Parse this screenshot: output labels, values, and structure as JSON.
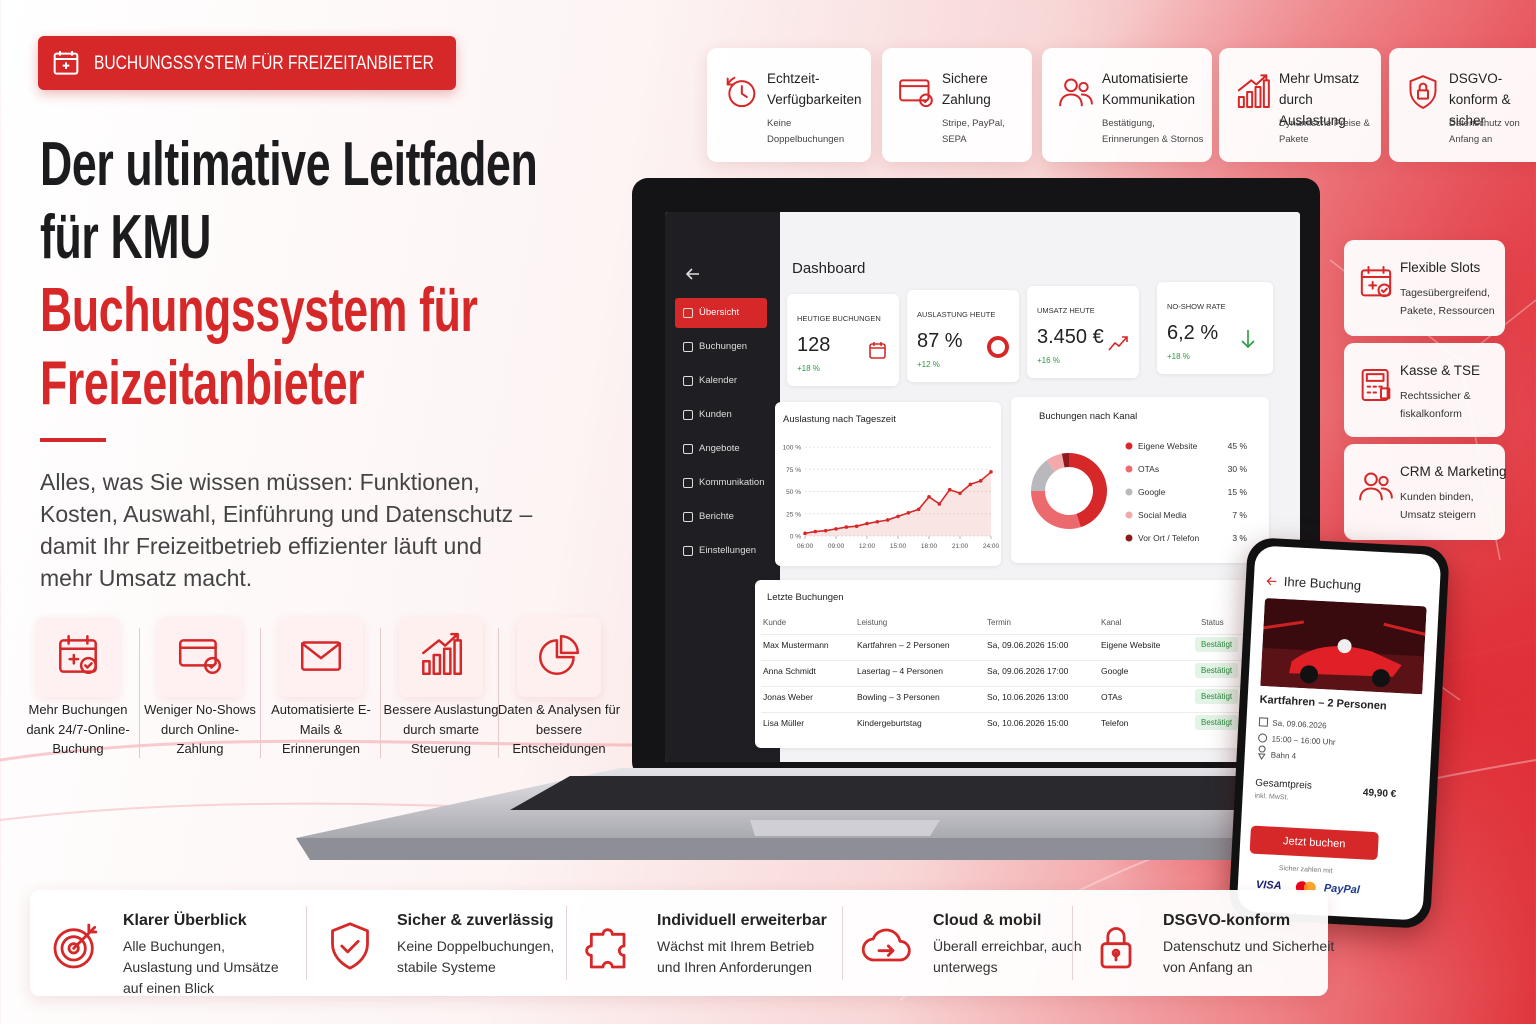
{
  "badge": "BUCHUNGSSYSTEM FÜR FREIZEITANBIETER",
  "headline": {
    "line1": "Der ultimative Leitfaden",
    "line2": "für KMU",
    "accent1": "Buchungssystem für",
    "accent2": "Freizeitanbieter"
  },
  "intro": "Alles, was Sie wissen müssen: Funktionen, Kosten, Auswahl, Einführung und Datenschutz – damit Ihr Freizeitbetrieb effizienter läuft und mehr Umsatz macht.",
  "benefits": [
    {
      "label": "Mehr Buchungen dank 24/7-Online-Buchung"
    },
    {
      "label": "Weniger No-Shows durch Online-Zahlung"
    },
    {
      "label": "Automatisierte E-Mails & Erinnerungen"
    },
    {
      "label": "Bessere Auslastung durch smarte Steuerung"
    },
    {
      "label": "Daten & Analysen für bessere Entscheidungen"
    }
  ],
  "top_features": [
    {
      "title": "Echtzeit-Verfügbarkeiten",
      "text": "Keine Doppelbuchungen"
    },
    {
      "title": "Sichere Zahlung",
      "text": "Stripe, PayPal, SEPA"
    },
    {
      "title": "Automatisierte Kommunikation",
      "text": "Bestätigung, Erinnerungen & Stornos"
    },
    {
      "title": "Mehr Umsatz durch Auslastung",
      "text": "Dynamische Preise & Pakete"
    },
    {
      "title": "DSGVO-konform & sicher",
      "text": "Datenschutz von Anfang an"
    }
  ],
  "side_features": [
    {
      "title": "Flexible Slots",
      "text": "Tagesübergreifend, Pakete, Ressourcen"
    },
    {
      "title": "Kasse & TSE",
      "text": "Rechtssicher & fiskalkonform"
    },
    {
      "title": "CRM & Marketing",
      "text": "Kunden binden, Umsatz steigern"
    }
  ],
  "dashboard": {
    "title": "Dashboard",
    "nav": [
      "Übersicht",
      "Buchungen",
      "Kalender",
      "Kunden",
      "Angebote",
      "Kommunikation",
      "Berichte",
      "Einstellungen"
    ],
    "kpis": [
      {
        "label": "HEUTIGE BUCHUNGEN",
        "value": "128",
        "change": "+18 %"
      },
      {
        "label": "AUSLASTUNG HEUTE",
        "value": "87 %",
        "change": "+12 %"
      },
      {
        "label": "UMSATZ HEUTE",
        "value": "3.450 €",
        "change": "+16 %"
      },
      {
        "label": "NO-SHOW RATE",
        "value": "6,2 %",
        "change": "+18 %"
      }
    ],
    "occupancy_chart": {
      "type": "line",
      "title": "Auslastung nach Tageszeit",
      "color": "#d62828",
      "x": [
        6,
        7,
        8,
        9,
        10,
        11,
        12,
        13,
        14,
        15,
        16,
        17,
        18,
        19,
        20,
        21,
        22,
        23,
        24
      ],
      "values": [
        3,
        5,
        6,
        8,
        10,
        11,
        14,
        16,
        18,
        22,
        26,
        30,
        44,
        36,
        52,
        48,
        58,
        62,
        72
      ],
      "xlim": [
        6,
        24
      ],
      "ylim": [
        0,
        100
      ],
      "xticks": [
        {
          "value": 6,
          "label": "06:00"
        },
        {
          "value": 9,
          "label": "09:00"
        },
        {
          "value": 12,
          "label": "12:00"
        },
        {
          "value": 15,
          "label": "15:00"
        },
        {
          "value": 18,
          "label": "18:00"
        },
        {
          "value": 21,
          "label": "21:00"
        },
        {
          "value": 24,
          "label": "24:00"
        }
      ],
      "yticks": [
        {
          "value": 0,
          "label": "0 %"
        },
        {
          "value": 25,
          "label": "25 %"
        },
        {
          "value": 50,
          "label": "50 %"
        },
        {
          "value": 75,
          "label": "75 %"
        },
        {
          "value": 100,
          "label": "100 %"
        }
      ]
    },
    "channel_chart": {
      "type": "pie",
      "title": "Buchungen nach Kanal",
      "categories": [
        "Eigene Website",
        "OTAs",
        "Google",
        "Social Media",
        "Vor Ort / Telefon"
      ],
      "values": [
        45,
        30,
        15,
        7,
        3
      ],
      "value_labels": [
        "45 %",
        "30 %",
        "15 %",
        "7 %",
        "3 %"
      ],
      "colors": [
        "#d62828",
        "#ec6a6e",
        "#b9b9bd",
        "#f3a9ab",
        "#8e1a1f"
      ]
    },
    "bookings": {
      "title": "Letzte Buchungen",
      "columns": [
        "Kunde",
        "Leistung",
        "Termin",
        "Kanal",
        "Status"
      ],
      "rows": [
        [
          "Max Mustermann",
          "Kartfahren – 2 Personen",
          "Sa, 09.06.2026 15:00",
          "Eigene Website",
          "Bestätigt"
        ],
        [
          "Anna Schmidt",
          "Lasertag – 4 Personen",
          "Sa, 09.06.2026 17:00",
          "Google",
          "Bestätigt"
        ],
        [
          "Jonas Weber",
          "Bowling – 3 Personen",
          "So, 10.06.2026 13:00",
          "OTAs",
          "Bestätigt"
        ],
        [
          "Lisa Müller",
          "Kindergeburtstag",
          "So, 10.06.2026 15:00",
          "Telefon",
          "Bestätigt"
        ]
      ]
    }
  },
  "phone": {
    "title": "Ihre Buchung",
    "product": "Kartfahren – 2 Personen",
    "date": "Sa, 09.06.2026",
    "time": "15:00 – 16:00 Uhr",
    "place": "Bahn 4",
    "total_label": "Gesamtpreis",
    "total_note": "inkl. MwSt.",
    "price": "49,90 €",
    "button": "Jetzt buchen",
    "pay_note": "Sicher zahlen mit",
    "pay_visa": "VISA",
    "pay_paypal": "PayPal"
  },
  "bottom_features": [
    {
      "title": "Klarer Überblick",
      "text": "Alle Buchungen, Auslastung und Umsätze auf einen Blick"
    },
    {
      "title": "Sicher & zuverlässig",
      "text": "Keine Doppelbuchungen, stabile Systeme"
    },
    {
      "title": "Individuell erweiterbar",
      "text": "Wächst mit Ihrem Betrieb und Ihren Anforderungen"
    },
    {
      "title": "Cloud & mobil",
      "text": "Überall erreichbar, auch unterwegs"
    },
    {
      "title": "DSGVO-konform",
      "text": "Datenschutz und Sicherheit von Anfang an"
    }
  ]
}
